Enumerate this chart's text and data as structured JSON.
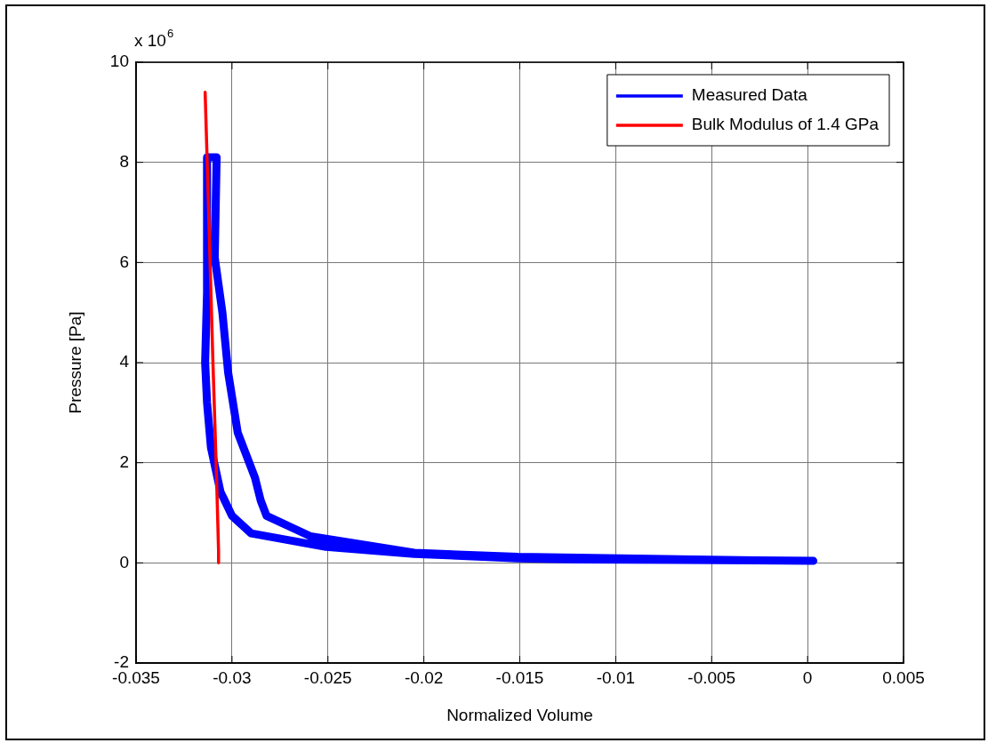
{
  "chart_data": {
    "type": "line",
    "xlabel": "Normalized Volume",
    "ylabel": "Pressure [Pa]",
    "annotations": [
      "x 10$^{6}$"
    ],
    "xlim": [
      -0.035,
      0.005
    ],
    "xticks": [
      -0.035,
      -0.03,
      -0.025,
      -0.02,
      -0.015,
      -0.01,
      -0.005,
      0,
      0.005
    ],
    "ylim": [
      -2,
      10
    ],
    "yticks": [
      -2,
      0,
      2,
      4,
      6,
      8,
      10
    ],
    "grid": true,
    "legend": "top right",
    "marker": "none",
    "line_style": "solid",
    "series": [
      {
        "name": "Measured Data",
        "color": "#0000ff",
        "x": [
          0.0002,
          -0.0027,
          -0.012,
          -0.0151,
          -0.0205,
          -0.0251,
          -0.029,
          -0.03,
          -0.0306,
          -0.0311,
          -0.0313,
          -0.0314,
          -0.0313,
          -0.0313,
          -0.0308,
          -0.0309,
          -0.0305,
          -0.0302,
          -0.0297,
          -0.0288,
          -0.0285,
          -0.0282,
          -0.0259,
          -0.0205,
          -0.0151,
          -0.0097,
          -0.0027,
          0.0003
        ],
        "values": [
          0.04,
          0.05,
          0.07,
          0.09,
          0.18,
          0.32,
          0.59,
          0.94,
          1.42,
          2.31,
          3.2,
          4.0,
          5.4,
          8.1,
          8.1,
          6.1,
          5.0,
          3.8,
          2.6,
          1.7,
          1.24,
          0.94,
          0.53,
          0.2,
          0.12,
          0.09,
          0.05,
          0.04
        ]
      },
      {
        "name": "Bulk Modulus of 1.4 GPa",
        "color": "#ff0000",
        "x": [
          -0.0314,
          -0.0313,
          -0.031,
          -0.0308,
          -0.0307,
          -0.0307
        ],
        "values": [
          9.4,
          8.1,
          4.1,
          1.65,
          0.23,
          0
        ]
      }
    ]
  }
}
